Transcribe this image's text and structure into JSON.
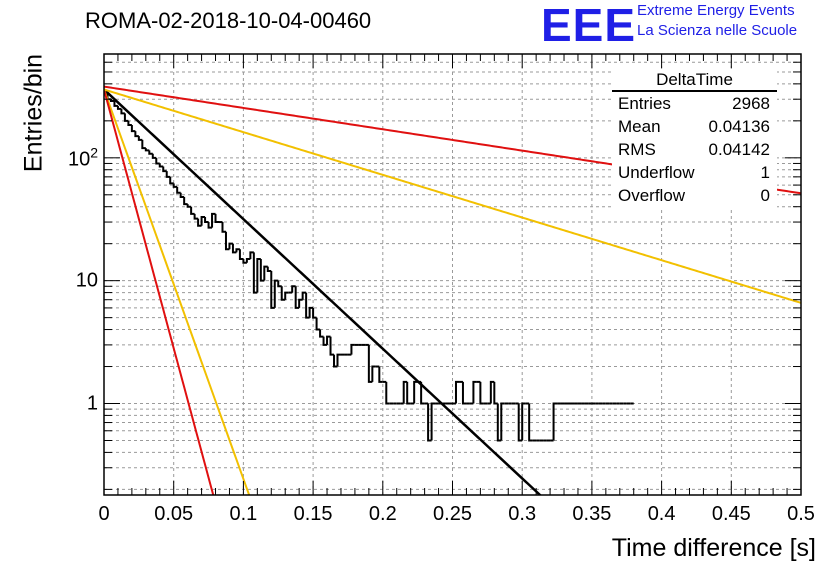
{
  "title": "ROMA-02-2018-10-04-00460",
  "logo": {
    "mark": "EEE",
    "line1": "Extreme Energy Events",
    "line2": "La Scienza nelle Scuole",
    "color": "#1f1fe6"
  },
  "stats_box": {
    "title": "DeltaTime",
    "rows": [
      {
        "key": "Entries",
        "value": "2968"
      },
      {
        "key": "Mean",
        "value": "0.04136"
      },
      {
        "key": "RMS",
        "value": "0.04142"
      },
      {
        "key": "Underflow",
        "value": "1"
      },
      {
        "key": "Overflow",
        "value": "0"
      }
    ]
  },
  "chart_data": {
    "type": "histogram",
    "title": "ROMA-02-2018-10-04-00460",
    "xlabel": "Time difference [s]",
    "ylabel": "Entries/bin",
    "xlim": [
      0,
      0.5
    ],
    "ylim": [
      0.18,
      700
    ],
    "yscale": "log",
    "grid": true,
    "xticks": [
      "0",
      "0.05",
      "0.1",
      "0.15",
      "0.2",
      "0.25",
      "0.3",
      "0.35",
      "0.4",
      "0.45",
      "0.5"
    ],
    "yticks": [
      {
        "value": 1,
        "label": "1"
      },
      {
        "value": 10,
        "label": "10"
      },
      {
        "value": 100,
        "label": "10",
        "exp": "2"
      }
    ],
    "bin_width": 0.0025,
    "bins": [
      [
        0.0025,
        330
      ],
      [
        0.005,
        300
      ],
      [
        0.0075,
        290
      ],
      [
        0.01,
        265
      ],
      [
        0.0125,
        250
      ],
      [
        0.015,
        230
      ],
      [
        0.0175,
        200
      ],
      [
        0.02,
        185
      ],
      [
        0.0225,
        165
      ],
      [
        0.025,
        150
      ],
      [
        0.0275,
        140
      ],
      [
        0.03,
        120
      ],
      [
        0.0325,
        115
      ],
      [
        0.035,
        108
      ],
      [
        0.0375,
        100
      ],
      [
        0.04,
        90
      ],
      [
        0.0425,
        85
      ],
      [
        0.045,
        78
      ],
      [
        0.0475,
        70
      ],
      [
        0.05,
        62
      ],
      [
        0.0525,
        58
      ],
      [
        0.055,
        52
      ],
      [
        0.0575,
        48
      ],
      [
        0.06,
        42
      ],
      [
        0.0625,
        40
      ],
      [
        0.065,
        35
      ],
      [
        0.0675,
        32
      ],
      [
        0.07,
        28
      ],
      [
        0.0725,
        33
      ],
      [
        0.075,
        30
      ],
      [
        0.0775,
        27
      ],
      [
        0.08,
        35
      ],
      [
        0.0825,
        30
      ],
      [
        0.085,
        30
      ],
      [
        0.0875,
        25
      ],
      [
        0.09,
        18
      ],
      [
        0.0925,
        20
      ],
      [
        0.095,
        17
      ],
      [
        0.0975,
        18
      ],
      [
        0.1,
        15
      ],
      [
        0.1025,
        14
      ],
      [
        0.105,
        15
      ],
      [
        0.1075,
        17
      ],
      [
        0.11,
        8
      ],
      [
        0.1125,
        15
      ],
      [
        0.115,
        10
      ],
      [
        0.1175,
        13
      ],
      [
        0.12,
        12
      ],
      [
        0.1225,
        6
      ],
      [
        0.125,
        10
      ],
      [
        0.1275,
        9
      ],
      [
        0.13,
        7
      ],
      [
        0.1325,
        8
      ],
      [
        0.135,
        8
      ],
      [
        0.1375,
        9
      ],
      [
        0.14,
        6
      ],
      [
        0.1425,
        7
      ],
      [
        0.145,
        8
      ],
      [
        0.1475,
        5
      ],
      [
        0.15,
        6
      ],
      [
        0.1525,
        5
      ],
      [
        0.155,
        4
      ],
      [
        0.1575,
        3.5
      ],
      [
        0.16,
        3
      ],
      [
        0.1625,
        3.5
      ],
      [
        0.165,
        2.5
      ],
      [
        0.1675,
        2
      ],
      [
        0.17,
        2.5
      ],
      [
        0.1725,
        2.5
      ],
      [
        0.175,
        2.5
      ],
      [
        0.1775,
        2.5
      ],
      [
        0.18,
        3
      ],
      [
        0.1825,
        3
      ],
      [
        0.185,
        3
      ],
      [
        0.1875,
        3
      ],
      [
        0.19,
        3
      ],
      [
        0.1925,
        1.5
      ],
      [
        0.195,
        2
      ],
      [
        0.1975,
        2
      ],
      [
        0.2,
        1.5
      ],
      [
        0.2025,
        1.5
      ],
      [
        0.205,
        1
      ],
      [
        0.2075,
        1
      ],
      [
        0.21,
        1
      ],
      [
        0.2125,
        1
      ],
      [
        0.215,
        1
      ],
      [
        0.2175,
        1.5
      ],
      [
        0.22,
        1
      ],
      [
        0.2225,
        1
      ],
      [
        0.225,
        1.5
      ],
      [
        0.2275,
        1.5
      ],
      [
        0.23,
        1
      ],
      [
        0.2325,
        1
      ],
      [
        0.235,
        0.5
      ],
      [
        0.2375,
        1
      ],
      [
        0.24,
        1
      ],
      [
        0.2425,
        1
      ],
      [
        0.245,
        1
      ],
      [
        0.2475,
        1
      ],
      [
        0.25,
        1
      ],
      [
        0.2525,
        1
      ],
      [
        0.255,
        1.5
      ],
      [
        0.2575,
        1.5
      ],
      [
        0.26,
        1
      ],
      [
        0.2625,
        1
      ],
      [
        0.265,
        1
      ],
      [
        0.2675,
        1.5
      ],
      [
        0.27,
        1.5
      ],
      [
        0.2725,
        1
      ],
      [
        0.275,
        1
      ],
      [
        0.2775,
        1
      ],
      [
        0.28,
        1.5
      ],
      [
        0.2825,
        1
      ],
      [
        0.285,
        0.5
      ],
      [
        0.2875,
        1
      ],
      [
        0.29,
        1
      ],
      [
        0.2925,
        1
      ],
      [
        0.295,
        1
      ],
      [
        0.2975,
        1
      ],
      [
        0.3,
        0.5
      ],
      [
        0.3025,
        1
      ],
      [
        0.305,
        1
      ],
      [
        0.3075,
        0.5
      ],
      [
        0.31,
        0.5
      ],
      [
        0.3125,
        0.5
      ],
      [
        0.315,
        0.5
      ],
      [
        0.3175,
        0.5
      ],
      [
        0.32,
        0.5
      ],
      [
        0.3225,
        0.5
      ],
      [
        0.325,
        1
      ],
      [
        0.3275,
        1
      ],
      [
        0.33,
        1
      ],
      [
        0.3325,
        1
      ],
      [
        0.335,
        1
      ],
      [
        0.3375,
        1
      ],
      [
        0.34,
        1
      ],
      [
        0.3425,
        1
      ],
      [
        0.345,
        1
      ],
      [
        0.3475,
        1
      ],
      [
        0.35,
        1
      ],
      [
        0.3525,
        1
      ],
      [
        0.355,
        1
      ],
      [
        0.3575,
        1
      ],
      [
        0.36,
        1
      ],
      [
        0.3625,
        1
      ],
      [
        0.365,
        1
      ],
      [
        0.3675,
        1
      ],
      [
        0.37,
        1
      ],
      [
        0.3725,
        1
      ],
      [
        0.375,
        1
      ],
      [
        0.3775,
        1
      ],
      [
        0.38,
        1
      ]
    ],
    "fits": [
      {
        "name": "fit",
        "color": "#000000",
        "y0": 360,
        "rate": 24.3,
        "width": 2.5
      },
      {
        "name": "yellow-steep",
        "color": "#f2c000",
        "y0": 360,
        "rate": 73,
        "width": 2
      },
      {
        "name": "red-steep",
        "color": "#e01010",
        "y0": 360,
        "rate": 97,
        "width": 2
      },
      {
        "name": "yellow-shallow",
        "color": "#f2c000",
        "y0": 360,
        "rate": 8.0,
        "width": 2
      },
      {
        "name": "red-shallow",
        "color": "#e01010",
        "y0": 380,
        "rate": 4.0,
        "width": 2
      }
    ]
  }
}
